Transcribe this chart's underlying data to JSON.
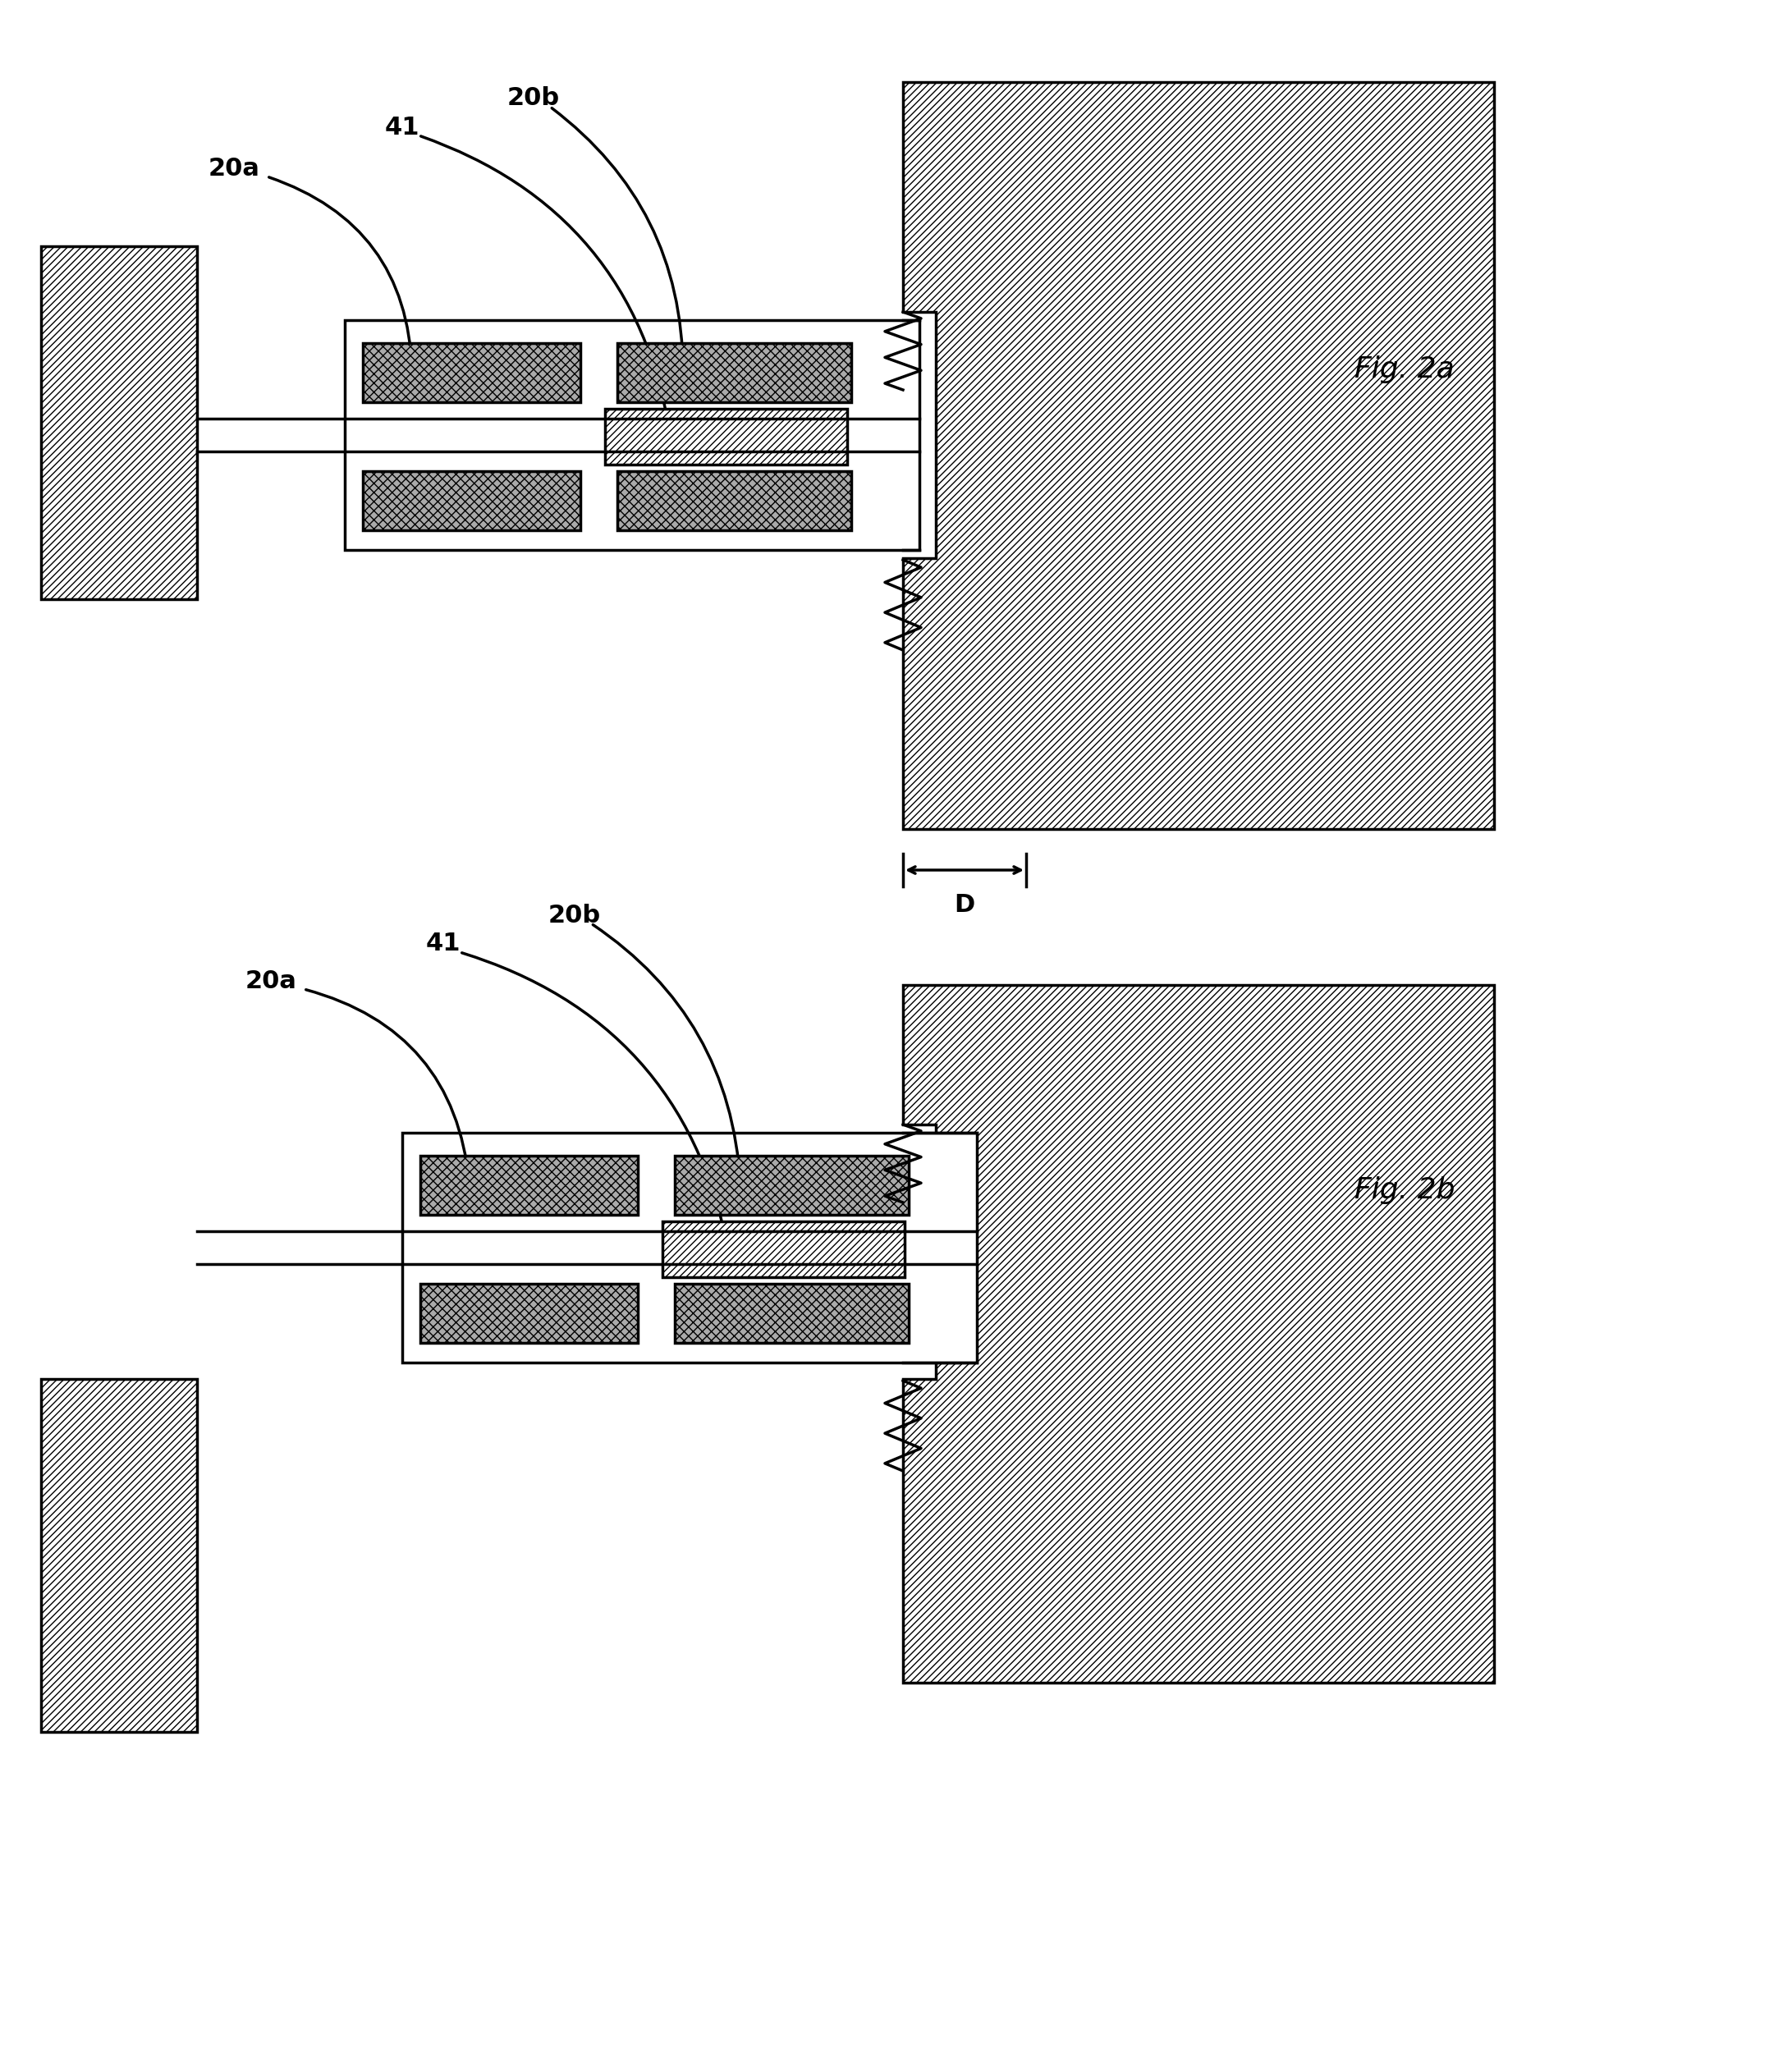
{
  "fig_width": 21.83,
  "fig_height": 25.17,
  "bg_color": "#ffffff",
  "fig2a_label": "Fig. 2a",
  "fig2b_label": "Fig. 2b",
  "label_20a": "20a",
  "label_41": "41",
  "label_20b": "20b",
  "label_D": "D",
  "font_size_label": 22,
  "font_size_fig": 26
}
